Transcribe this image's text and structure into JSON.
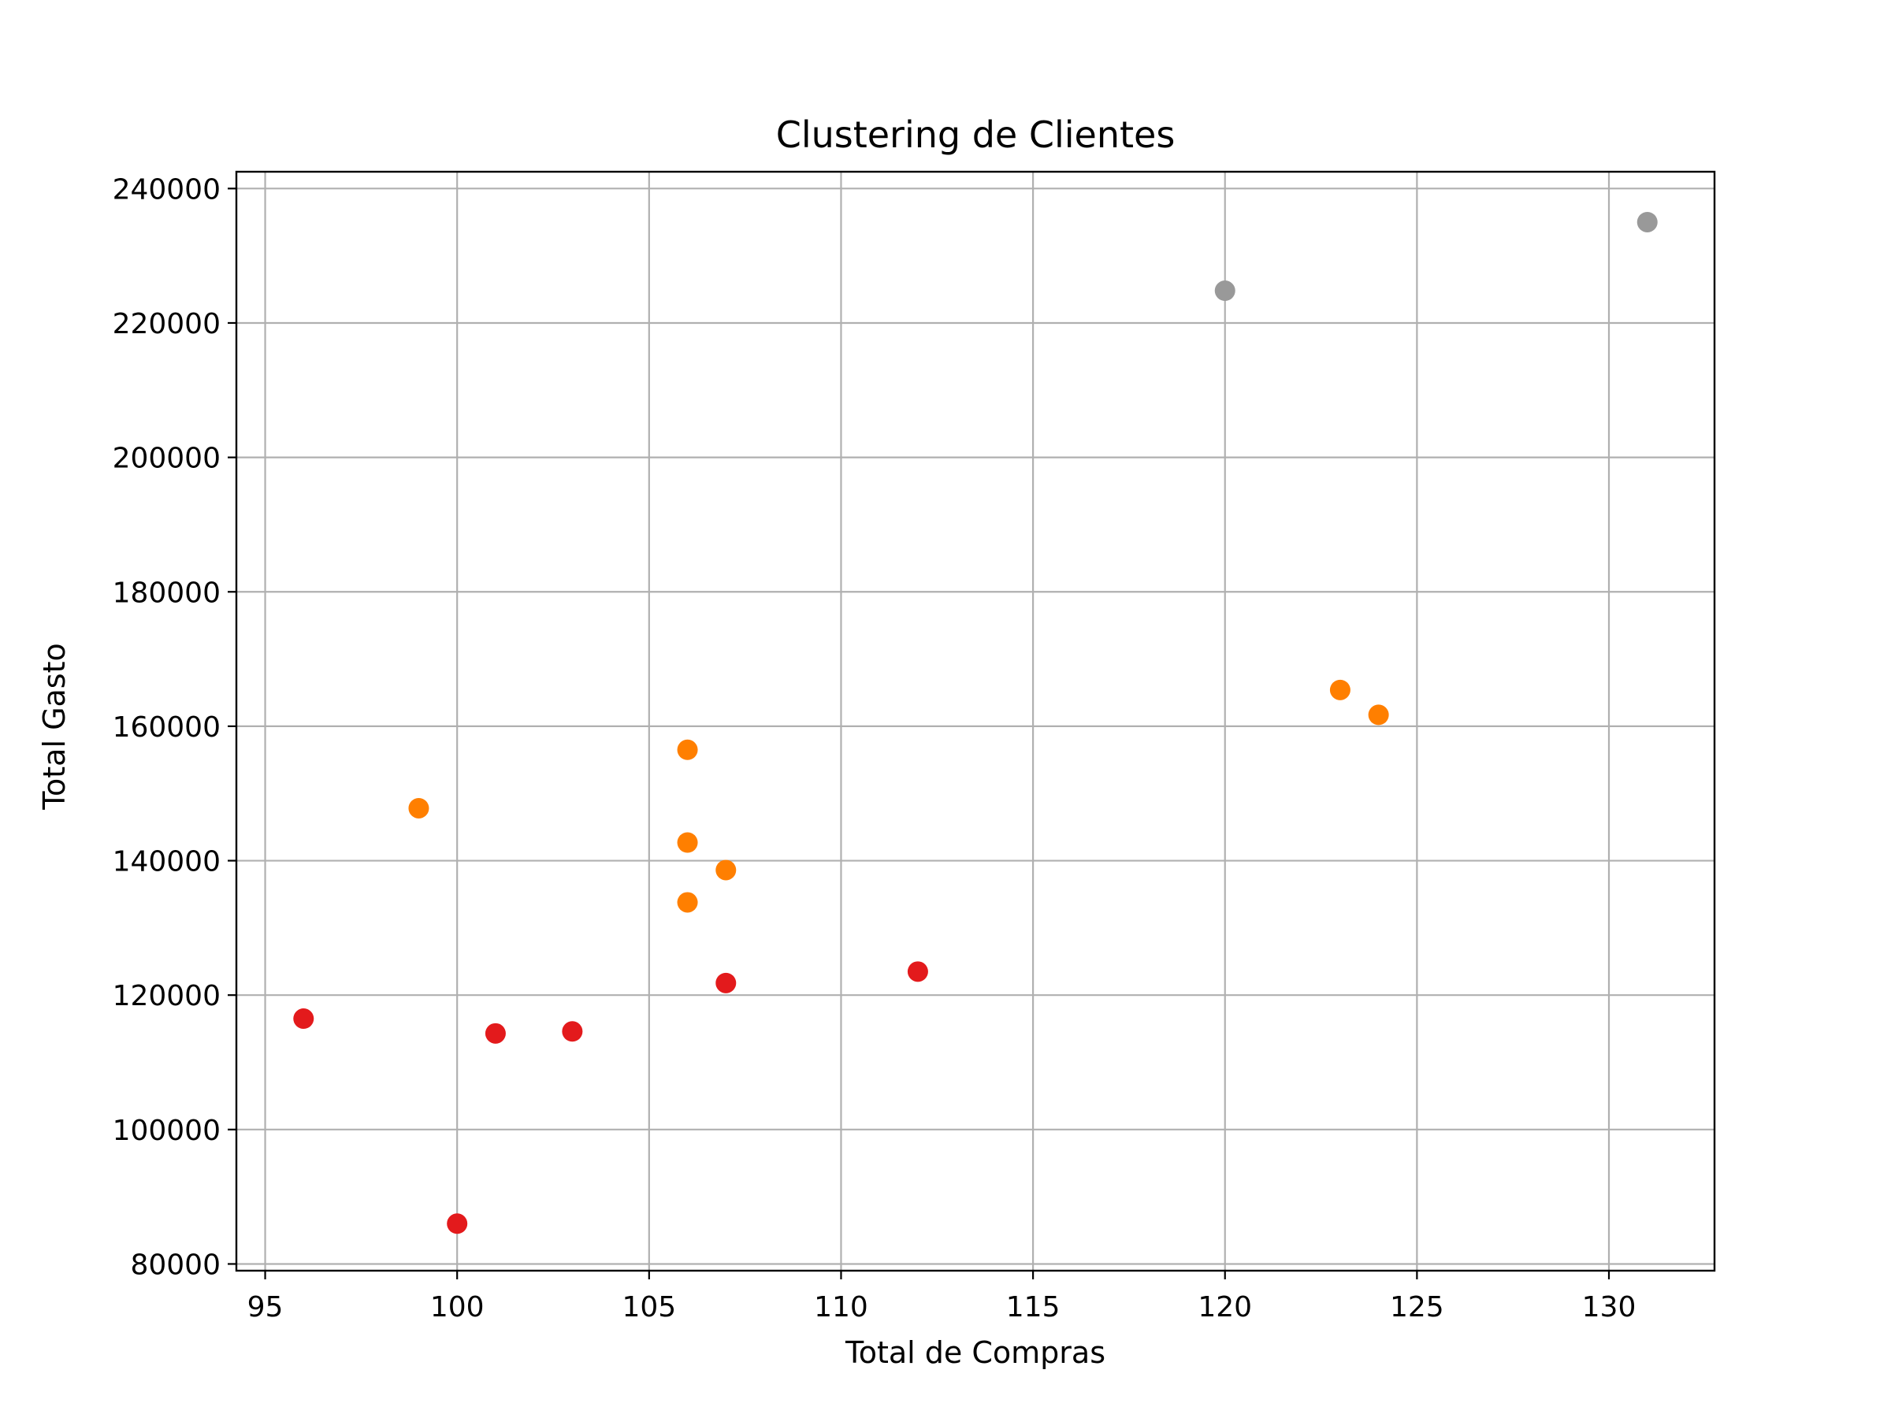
{
  "chart_data": {
    "type": "scatter",
    "title": "Clustering de Clientes",
    "xlabel": "Total de Compras",
    "ylabel": "Total Gasto",
    "xlim": [
      94.25,
      132.75
    ],
    "ylim": [
      79000,
      242500
    ],
    "xticks": [
      95,
      100,
      105,
      110,
      115,
      120,
      125,
      130
    ],
    "yticks": [
      80000,
      100000,
      120000,
      140000,
      160000,
      180000,
      200000,
      220000,
      240000
    ],
    "grid": true,
    "colors": [
      "#e31a1c",
      "#ff7f00",
      "#999999"
    ],
    "series": [
      {
        "color": "#e31a1c",
        "points": [
          {
            "x": 96,
            "y": 116500
          },
          {
            "x": 100,
            "y": 86000
          },
          {
            "x": 101,
            "y": 114300
          },
          {
            "x": 103,
            "y": 114600
          },
          {
            "x": 107,
            "y": 121800
          },
          {
            "x": 112,
            "y": 123500
          }
        ]
      },
      {
        "color": "#ff7f00",
        "points": [
          {
            "x": 99,
            "y": 147800
          },
          {
            "x": 106,
            "y": 156500
          },
          {
            "x": 106,
            "y": 142700
          },
          {
            "x": 106,
            "y": 133800
          },
          {
            "x": 107,
            "y": 138600
          },
          {
            "x": 123,
            "y": 165400
          },
          {
            "x": 124,
            "y": 161700
          }
        ]
      },
      {
        "color": "#999999",
        "points": [
          {
            "x": 120,
            "y": 224800
          },
          {
            "x": 131,
            "y": 235000
          }
        ]
      }
    ]
  }
}
